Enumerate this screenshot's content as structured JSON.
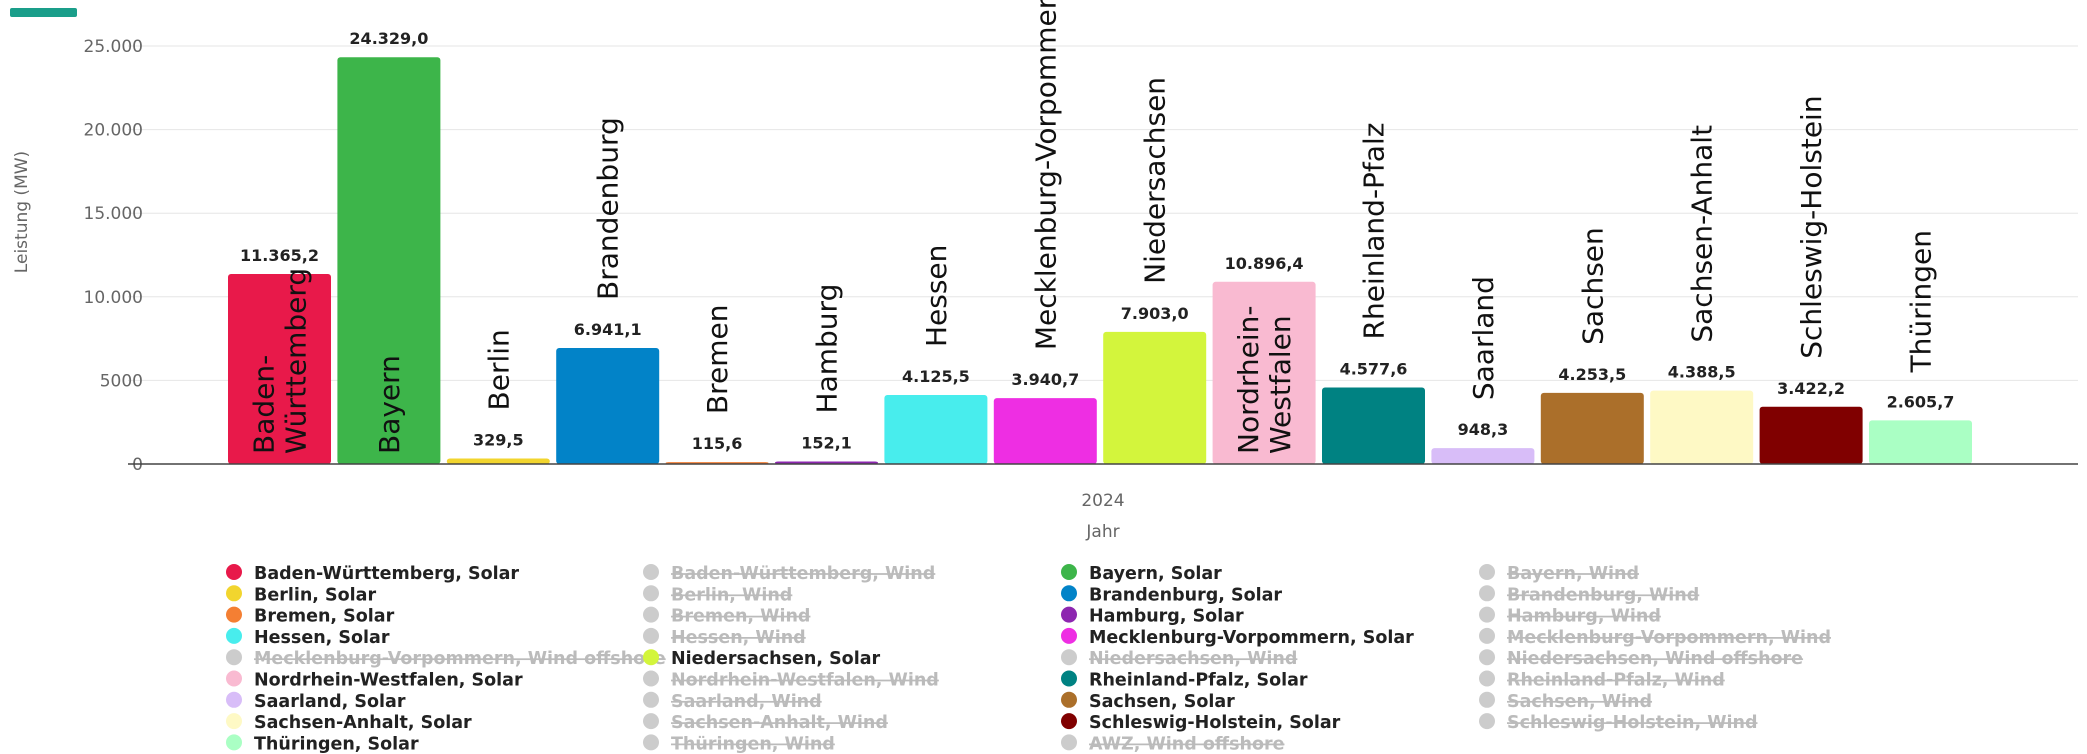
{
  "chart_data": {
    "type": "bar",
    "ylabel": "Leistung (MW)",
    "xlabel": "Jahr",
    "category": "2024",
    "ylim": [
      0,
      25000
    ],
    "yticks": [
      0,
      5000,
      10000,
      15000,
      20000,
      25000
    ],
    "ytick_labels": [
      "0",
      "5000",
      "10.000",
      "15.000",
      "20.000",
      "25.000"
    ],
    "grid": true,
    "legend_placement": "bottom",
    "series": [
      {
        "name": "Baden-Württemberg",
        "value": 11365.2,
        "label": "11.365,2",
        "color": "#e8194a"
      },
      {
        "name": "Bayern",
        "value": 24329.0,
        "label": "24.329,0",
        "color": "#3db54a"
      },
      {
        "name": "Berlin",
        "value": 329.5,
        "label": "329,5",
        "color": "#f2d52e"
      },
      {
        "name": "Brandenburg",
        "value": 6941.1,
        "label": "6.941,1",
        "color": "#0283c8"
      },
      {
        "name": "Bremen",
        "value": 115.6,
        "label": "115,6",
        "color": "#f47f33"
      },
      {
        "name": "Hamburg",
        "value": 152.1,
        "label": "152,1",
        "color": "#8d27b0"
      },
      {
        "name": "Hessen",
        "value": 4125.5,
        "label": "4.125,5",
        "color": "#48eded"
      },
      {
        "name": "Mecklenburg-Vorpommern",
        "value": 3940.7,
        "label": "3.940,7",
        "color": "#ee2ee3"
      },
      {
        "name": "Niedersachsen",
        "value": 7903.0,
        "label": "7.903,0",
        "color": "#d3f53c"
      },
      {
        "name": "Nordrhein-Westfalen",
        "value": 10896.4,
        "label": "10.896,4",
        "color": "#f9bad1"
      },
      {
        "name": "Rheinland-Pfalz",
        "value": 4577.6,
        "label": "4.577,6",
        "color": "#008282"
      },
      {
        "name": "Saarland",
        "value": 948.3,
        "label": "948,3",
        "color": "#d8bdf8"
      },
      {
        "name": "Sachsen",
        "value": 4253.5,
        "label": "4.253,5",
        "color": "#ab6f2a"
      },
      {
        "name": "Sachsen-Anhalt",
        "value": 4388.5,
        "label": "4.388,5",
        "color": "#fef9c5"
      },
      {
        "name": "Schleswig-Holstein",
        "value": 3422.2,
        "label": "3.422,2",
        "color": "#800000"
      },
      {
        "name": "Thüringen",
        "value": 2605.7,
        "label": "2.605,7",
        "color": "#aaffc4"
      }
    ],
    "bar_name_lines": {
      "Baden-Württemberg": [
        "Baden-",
        "Württemberg"
      ],
      "Nordrhein-Westfalen": [
        "Nordrhein-",
        "Westfalen"
      ]
    },
    "bar_name_inside": [
      "Baden-Württemberg",
      "Bayern",
      "Nordrhein-Westfalen"
    ]
  },
  "legend": {
    "hidden_color": "#cccccc",
    "columns": [
      [
        {
          "label": "Baden-Württemberg, Solar",
          "color": "#e8194a",
          "visible": true
        },
        {
          "label": "Berlin, Solar",
          "color": "#f2d52e",
          "visible": true
        },
        {
          "label": "Bremen, Solar",
          "color": "#f47f33",
          "visible": true
        },
        {
          "label": "Hessen, Solar",
          "color": "#48eded",
          "visible": true
        },
        {
          "label": "Mecklenburg-Vorpommern, Wind offshore",
          "color": "#cccccc",
          "visible": false
        },
        {
          "label": "Nordrhein-Westfalen, Solar",
          "color": "#f9bad1",
          "visible": true
        },
        {
          "label": "Saarland, Solar",
          "color": "#d8bdf8",
          "visible": true
        },
        {
          "label": "Sachsen-Anhalt, Solar",
          "color": "#fef9c5",
          "visible": true
        },
        {
          "label": "Thüringen, Solar",
          "color": "#aaffc4",
          "visible": true
        }
      ],
      [
        {
          "label": "Baden-Württemberg, Wind",
          "color": "#cccccc",
          "visible": false
        },
        {
          "label": "Berlin, Wind",
          "color": "#cccccc",
          "visible": false
        },
        {
          "label": "Bremen, Wind",
          "color": "#cccccc",
          "visible": false
        },
        {
          "label": "Hessen, Wind",
          "color": "#cccccc",
          "visible": false
        },
        {
          "label": "Niedersachsen, Solar",
          "color": "#d3f53c",
          "visible": true
        },
        {
          "label": "Nordrhein-Westfalen, Wind",
          "color": "#cccccc",
          "visible": false
        },
        {
          "label": "Saarland, Wind",
          "color": "#cccccc",
          "visible": false
        },
        {
          "label": "Sachsen-Anhalt, Wind",
          "color": "#cccccc",
          "visible": false
        },
        {
          "label": "Thüringen, Wind",
          "color": "#cccccc",
          "visible": false
        }
      ],
      [
        {
          "label": "Bayern, Solar",
          "color": "#3db54a",
          "visible": true
        },
        {
          "label": "Brandenburg, Solar",
          "color": "#0283c8",
          "visible": true
        },
        {
          "label": "Hamburg, Solar",
          "color": "#8d27b0",
          "visible": true
        },
        {
          "label": "Mecklenburg-Vorpommern, Solar",
          "color": "#ee2ee3",
          "visible": true
        },
        {
          "label": "Niedersachsen, Wind",
          "color": "#cccccc",
          "visible": false
        },
        {
          "label": "Rheinland-Pfalz, Solar",
          "color": "#008282",
          "visible": true
        },
        {
          "label": "Sachsen, Solar",
          "color": "#ab6f2a",
          "visible": true
        },
        {
          "label": "Schleswig-Holstein, Solar",
          "color": "#800000",
          "visible": true
        },
        {
          "label": "AWZ, Wind offshore",
          "color": "#cccccc",
          "visible": false
        }
      ],
      [
        {
          "label": "Bayern, Wind",
          "color": "#cccccc",
          "visible": false
        },
        {
          "label": "Brandenburg, Wind",
          "color": "#cccccc",
          "visible": false
        },
        {
          "label": "Hamburg, Wind",
          "color": "#cccccc",
          "visible": false
        },
        {
          "label": "Mecklenburg-Vorpommern, Wind",
          "color": "#cccccc",
          "visible": false
        },
        {
          "label": "Niedersachsen, Wind offshore",
          "color": "#cccccc",
          "visible": false
        },
        {
          "label": "Rheinland-Pfalz, Wind",
          "color": "#cccccc",
          "visible": false
        },
        {
          "label": "Sachsen, Wind",
          "color": "#cccccc",
          "visible": false
        },
        {
          "label": "Schleswig-Holstein, Wind",
          "color": "#cccccc",
          "visible": false
        }
      ]
    ]
  },
  "accent": {
    "color": "#1a9e8a"
  }
}
